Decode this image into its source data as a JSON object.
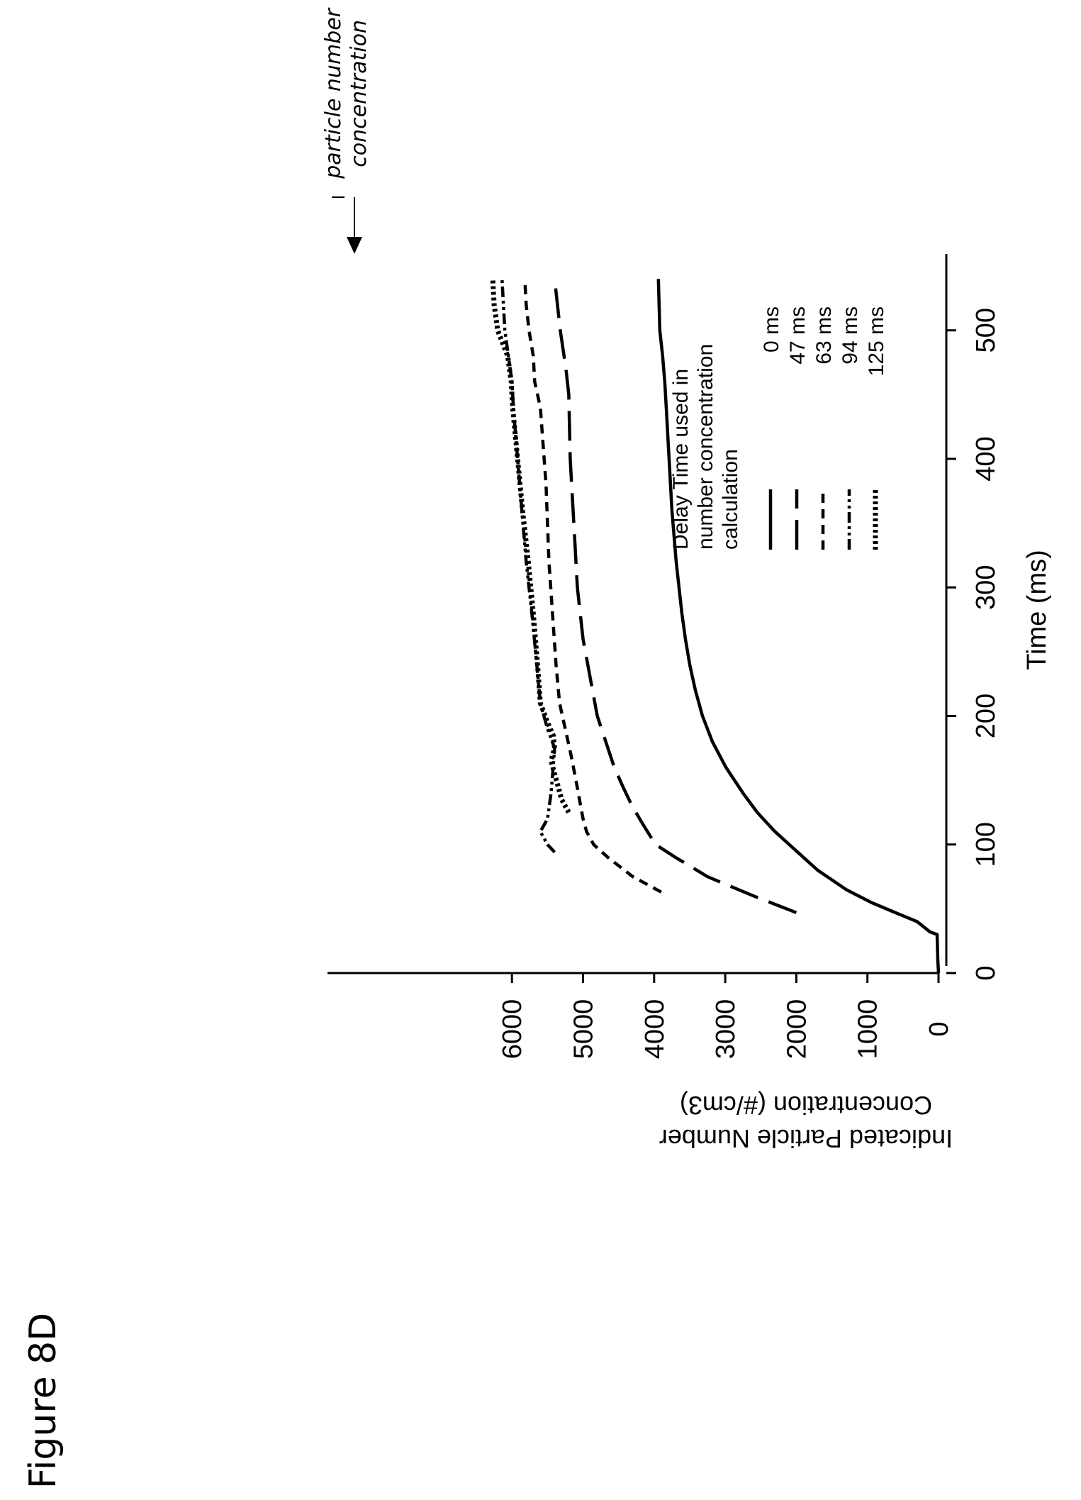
{
  "figure_label": "Figure 8D",
  "colors": {
    "ink": "#000000",
    "background": "#ffffff"
  },
  "chart_data": {
    "type": "line",
    "orientation": "page rotated 90 degrees counter-clockwise",
    "title": "",
    "xlabel": "Time (ms)",
    "ylabel_line1": "Indicated Particle Number",
    "ylabel_line2": "Concentration (#/cm3)",
    "xlim": [
      0,
      550
    ],
    "ylim": [
      0,
      6400
    ],
    "x_ticks": [
      0,
      100,
      200,
      300,
      400,
      500
    ],
    "x_tick_labels": [
      "0",
      "100",
      "200",
      "300",
      "400",
      "500"
    ],
    "y_ticks": [
      0,
      1000,
      2000,
      3000,
      4000,
      5000,
      6000
    ],
    "y_tick_labels": [
      "0",
      "1000",
      "2000",
      "3000",
      "4000",
      "5000",
      "6000"
    ],
    "grid": false,
    "legend": {
      "title_lines": [
        "Delay Time used in",
        "number concentration",
        "calculation"
      ],
      "placement": "lower-right"
    },
    "annotation": {
      "line1": "particle number",
      "line2": "concentration",
      "points_to": {
        "x": 540,
        "y": 6200
      }
    },
    "series": [
      {
        "name": "0 ms",
        "style": "solid",
        "x": [
          0,
          10,
          20,
          30,
          32,
          40,
          48,
          55,
          65,
          80,
          95,
          110,
          125,
          140,
          160,
          180,
          200,
          220,
          240,
          260,
          280,
          300,
          320,
          340,
          360,
          380,
          400,
          420,
          440,
          460,
          480,
          500,
          520,
          540
        ],
        "y": [
          0,
          10,
          15,
          20,
          120,
          300,
          650,
          950,
          1300,
          1700,
          2000,
          2300,
          2550,
          2750,
          2990,
          3180,
          3320,
          3420,
          3500,
          3560,
          3610,
          3650,
          3690,
          3720,
          3750,
          3770,
          3790,
          3810,
          3830,
          3850,
          3880,
          3920,
          3930,
          3940
        ]
      },
      {
        "name": "47 ms",
        "style": "long dash",
        "x": [
          47,
          60,
          75,
          90,
          100,
          115,
          130,
          145,
          160,
          180,
          200,
          230,
          260,
          300,
          350,
          400,
          450,
          470,
          500,
          540
        ],
        "y": [
          2000,
          2600,
          3250,
          3700,
          3980,
          4150,
          4310,
          4440,
          4560,
          4680,
          4800,
          4900,
          5000,
          5080,
          5130,
          5180,
          5200,
          5240,
          5320,
          5400
        ]
      },
      {
        "name": "63 ms",
        "style": "short dash",
        "x": [
          63,
          75,
          90,
          100,
          110,
          120,
          135,
          150,
          170,
          190,
          210,
          240,
          280,
          320,
          380,
          440,
          460,
          480,
          500,
          520,
          540
        ],
        "y": [
          3900,
          4300,
          4650,
          4850,
          4950,
          5000,
          5050,
          5100,
          5170,
          5250,
          5330,
          5380,
          5430,
          5480,
          5520,
          5600,
          5680,
          5700,
          5760,
          5800,
          5820
        ]
      },
      {
        "name": "94 ms",
        "style": "dash-dot-dot",
        "x": [
          94,
          100,
          110,
          120,
          140,
          160,
          175,
          190,
          210,
          240,
          280,
          320,
          360,
          400,
          440,
          460,
          480,
          500,
          520,
          540
        ],
        "y": [
          5400,
          5500,
          5600,
          5500,
          5450,
          5420,
          5400,
          5500,
          5600,
          5650,
          5720,
          5800,
          5860,
          5920,
          5980,
          6000,
          6050,
          6100,
          6120,
          6140
        ]
      },
      {
        "name": "125 ms",
        "style": "dotted",
        "x": [
          125,
          135,
          145,
          155,
          165,
          175,
          185,
          195,
          210,
          240,
          280,
          320,
          360,
          400,
          440,
          460,
          480,
          500,
          520,
          540
        ],
        "y": [
          5200,
          5300,
          5350,
          5400,
          5450,
          5400,
          5420,
          5500,
          5600,
          5640,
          5700,
          5770,
          5850,
          5920,
          5990,
          6010,
          6060,
          6200,
          6250,
          6270
        ]
      }
    ]
  }
}
